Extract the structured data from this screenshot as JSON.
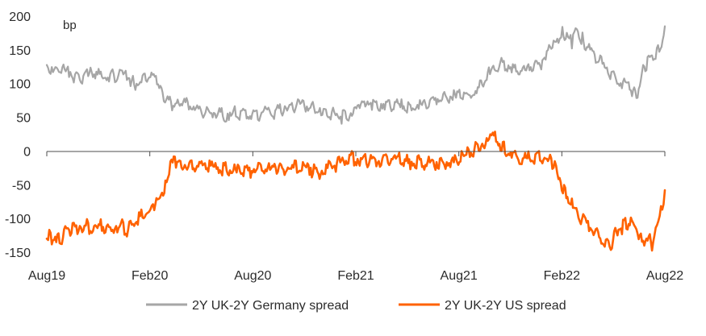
{
  "chart_data": {
    "type": "line",
    "unit_label": "bp",
    "x_ticks": [
      "Aug19",
      "Feb20",
      "Aug20",
      "Feb21",
      "Aug21",
      "Feb22",
      "Aug22"
    ],
    "x_range": [
      "2019-08-01",
      "2022-08-15"
    ],
    "ylim": [
      -150,
      200
    ],
    "y_ticks": [
      200,
      150,
      100,
      50,
      0,
      -50,
      -100,
      -150
    ],
    "grid": false,
    "legend_position": "bottom",
    "series": [
      {
        "name": "2Y UK-2Y Germany spread",
        "color": "#a6a6a6",
        "points": [
          [
            "2019-08-01",
            132
          ],
          [
            "2019-08-10",
            124
          ],
          [
            "2019-08-25",
            128
          ],
          [
            "2019-09-10",
            122
          ],
          [
            "2019-09-25",
            112
          ],
          [
            "2019-10-10",
            120
          ],
          [
            "2019-10-25",
            118
          ],
          [
            "2019-11-10",
            116
          ],
          [
            "2019-11-25",
            118
          ],
          [
            "2019-12-10",
            121
          ],
          [
            "2019-12-25",
            118
          ],
          [
            "2020-01-05",
            106
          ],
          [
            "2020-01-20",
            114
          ],
          [
            "2020-02-05",
            118
          ],
          [
            "2020-02-15",
            110
          ],
          [
            "2020-02-25",
            92
          ],
          [
            "2020-03-05",
            80
          ],
          [
            "2020-03-15",
            70
          ],
          [
            "2020-03-25",
            76
          ],
          [
            "2020-04-10",
            75
          ],
          [
            "2020-04-25",
            70
          ],
          [
            "2020-05-10",
            64
          ],
          [
            "2020-05-25",
            62
          ],
          [
            "2020-06-10",
            60
          ],
          [
            "2020-06-25",
            59
          ],
          [
            "2020-07-10",
            62
          ],
          [
            "2020-07-25",
            59
          ],
          [
            "2020-08-10",
            60
          ],
          [
            "2020-08-25",
            64
          ],
          [
            "2020-09-10",
            63
          ],
          [
            "2020-09-25",
            68
          ],
          [
            "2020-10-10",
            72
          ],
          [
            "2020-10-25",
            74
          ],
          [
            "2020-11-10",
            76
          ],
          [
            "2020-11-25",
            70
          ],
          [
            "2020-12-10",
            66
          ],
          [
            "2020-12-25",
            62
          ],
          [
            "2021-01-05",
            57
          ],
          [
            "2021-01-20",
            60
          ],
          [
            "2021-02-05",
            68
          ],
          [
            "2021-02-15",
            72
          ],
          [
            "2021-03-01",
            77
          ],
          [
            "2021-03-15",
            76
          ],
          [
            "2021-04-01",
            78
          ],
          [
            "2021-04-15",
            76
          ],
          [
            "2021-05-01",
            74
          ],
          [
            "2021-05-15",
            71
          ],
          [
            "2021-06-01",
            74
          ],
          [
            "2021-06-15",
            78
          ],
          [
            "2021-07-01",
            80
          ],
          [
            "2021-07-15",
            84
          ],
          [
            "2021-08-01",
            88
          ],
          [
            "2021-08-15",
            87
          ],
          [
            "2021-09-01",
            90
          ],
          [
            "2021-09-15",
            98
          ],
          [
            "2021-10-01",
            118
          ],
          [
            "2021-10-15",
            130
          ],
          [
            "2021-11-01",
            136
          ],
          [
            "2021-11-15",
            130
          ],
          [
            "2021-12-01",
            126
          ],
          [
            "2021-12-15",
            128
          ],
          [
            "2022-01-01",
            135
          ],
          [
            "2022-01-15",
            148
          ],
          [
            "2022-01-25",
            160
          ],
          [
            "2022-02-05",
            170
          ],
          [
            "2022-02-12",
            185
          ],
          [
            "2022-02-20",
            176
          ],
          [
            "2022-03-01",
            165
          ],
          [
            "2022-03-10",
            190
          ],
          [
            "2022-03-20",
            172
          ],
          [
            "2022-04-01",
            158
          ],
          [
            "2022-04-15",
            146
          ],
          [
            "2022-05-01",
            130
          ],
          [
            "2022-05-15",
            114
          ],
          [
            "2022-06-01",
            106
          ],
          [
            "2022-06-15",
            100
          ],
          [
            "2022-06-25",
            92
          ],
          [
            "2022-07-05",
            118
          ],
          [
            "2022-07-15",
            140
          ],
          [
            "2022-07-25",
            145
          ],
          [
            "2022-08-05",
            160
          ],
          [
            "2022-08-15",
            185
          ]
        ]
      },
      {
        "name": "2Y UK-2Y US spread",
        "color": "#ff6200",
        "points": [
          [
            "2019-08-01",
            -112
          ],
          [
            "2019-08-10",
            -120
          ],
          [
            "2019-08-20",
            -126
          ],
          [
            "2019-09-01",
            -118
          ],
          [
            "2019-09-10",
            -110
          ],
          [
            "2019-09-25",
            -108
          ],
          [
            "2019-10-10",
            -105
          ],
          [
            "2019-10-25",
            -108
          ],
          [
            "2019-11-10",
            -106
          ],
          [
            "2019-11-25",
            -110
          ],
          [
            "2019-12-10",
            -104
          ],
          [
            "2019-12-25",
            -110
          ],
          [
            "2020-01-05",
            -100
          ],
          [
            "2020-01-20",
            -90
          ],
          [
            "2020-02-01",
            -85
          ],
          [
            "2020-02-10",
            -80
          ],
          [
            "2020-02-20",
            -60
          ],
          [
            "2020-03-01",
            -40
          ],
          [
            "2020-03-10",
            -15
          ],
          [
            "2020-03-20",
            -12
          ],
          [
            "2020-04-01",
            -16
          ],
          [
            "2020-04-15",
            -14
          ],
          [
            "2020-05-01",
            -16
          ],
          [
            "2020-05-15",
            -18
          ],
          [
            "2020-06-01",
            -19
          ],
          [
            "2020-06-15",
            -21
          ],
          [
            "2020-07-01",
            -24
          ],
          [
            "2020-07-15",
            -20
          ],
          [
            "2020-08-01",
            -22
          ],
          [
            "2020-08-15",
            -18
          ],
          [
            "2020-09-01",
            -22
          ],
          [
            "2020-09-15",
            -18
          ],
          [
            "2020-10-01",
            -20
          ],
          [
            "2020-10-15",
            -17
          ],
          [
            "2020-11-01",
            -19
          ],
          [
            "2020-11-15",
            -21
          ],
          [
            "2020-12-01",
            -24
          ],
          [
            "2020-12-15",
            -20
          ],
          [
            "2021-01-01",
            -14
          ],
          [
            "2021-01-15",
            -9
          ],
          [
            "2021-02-01",
            -5
          ],
          [
            "2021-02-15",
            -8
          ],
          [
            "2021-03-01",
            -6
          ],
          [
            "2021-03-15",
            -10
          ],
          [
            "2021-04-01",
            -8
          ],
          [
            "2021-04-15",
            -6
          ],
          [
            "2021-05-01",
            -8
          ],
          [
            "2021-05-15",
            -12
          ],
          [
            "2021-06-01",
            -10
          ],
          [
            "2021-06-15",
            -13
          ],
          [
            "2021-07-01",
            -10
          ],
          [
            "2021-07-15",
            -12
          ],
          [
            "2021-08-01",
            -10
          ],
          [
            "2021-08-15",
            -3
          ],
          [
            "2021-09-01",
            5
          ],
          [
            "2021-09-15",
            15
          ],
          [
            "2021-10-01",
            22
          ],
          [
            "2021-10-10",
            32
          ],
          [
            "2021-10-20",
            18
          ],
          [
            "2021-11-01",
            8
          ],
          [
            "2021-11-15",
            0
          ],
          [
            "2021-12-01",
            -8
          ],
          [
            "2021-12-15",
            -4
          ],
          [
            "2022-01-01",
            -2
          ],
          [
            "2022-01-15",
            -4
          ],
          [
            "2022-01-25",
            -14
          ],
          [
            "2022-02-05",
            -30
          ],
          [
            "2022-02-15",
            -50
          ],
          [
            "2022-03-01",
            -72
          ],
          [
            "2022-03-15",
            -95
          ],
          [
            "2022-04-01",
            -105
          ],
          [
            "2022-04-15",
            -115
          ],
          [
            "2022-05-01",
            -130
          ],
          [
            "2022-05-10",
            -135
          ],
          [
            "2022-05-20",
            -110
          ],
          [
            "2022-06-01",
            -103
          ],
          [
            "2022-06-15",
            -98
          ],
          [
            "2022-06-25",
            -110
          ],
          [
            "2022-07-05",
            -122
          ],
          [
            "2022-07-15",
            -125
          ],
          [
            "2022-07-25",
            -135
          ],
          [
            "2022-08-01",
            -100
          ],
          [
            "2022-08-08",
            -75
          ],
          [
            "2022-08-15",
            -58
          ]
        ]
      }
    ]
  }
}
